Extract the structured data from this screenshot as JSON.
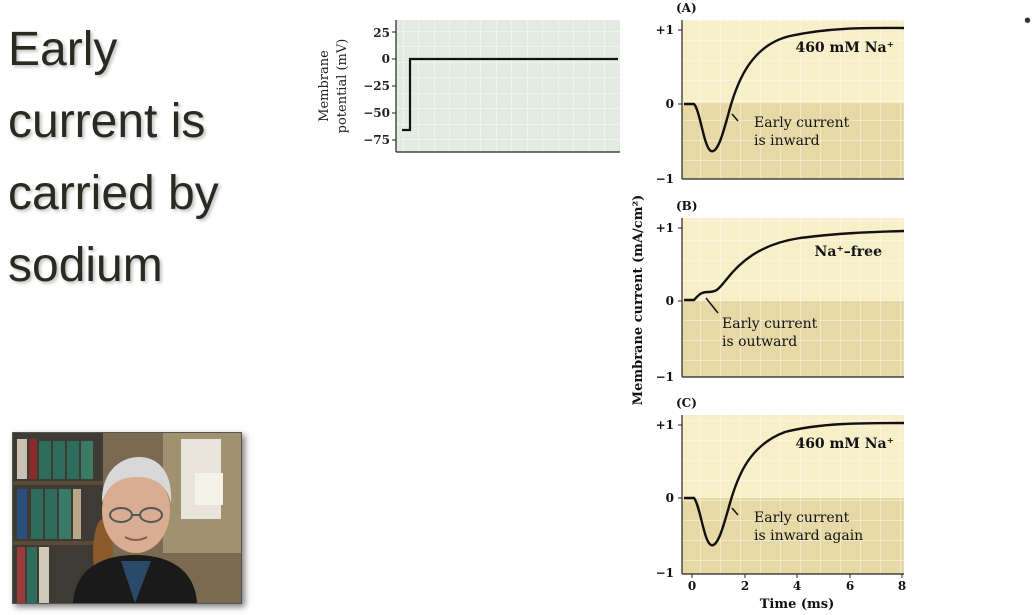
{
  "slide": {
    "title_lines": [
      "Early",
      "current is",
      "carried by",
      "sodium"
    ],
    "bullet": "•"
  },
  "voltage_plot": {
    "ylabel_line1": "Membrane",
    "ylabel_line2": "potential (mV)",
    "yticks": [
      "25",
      "0",
      "−25",
      "−50",
      "−75"
    ]
  },
  "chart_data": {
    "type": "line",
    "xlabel": "Time (ms)",
    "ylabel": "Membrane current (mA/cm²)",
    "xticks": [
      "0",
      "2",
      "4",
      "6",
      "8"
    ],
    "yticks": [
      "+1",
      "0",
      "−1"
    ],
    "panels": [
      {
        "label": "(A)",
        "condition": "460 mM Na⁺",
        "annotation_line1": "Early current",
        "annotation_line2": "is inward"
      },
      {
        "label": "(B)",
        "condition": "Na⁺–free",
        "annotation_line1": "Early current",
        "annotation_line2": "is outward"
      },
      {
        "label": "(C)",
        "condition": "460 mM Na⁺",
        "annotation_line1": "Early current",
        "annotation_line2": "is inward again"
      }
    ]
  },
  "colors": {
    "plot_bg_light": "#f6efc8",
    "plot_bg_dark": "#e6d9a6",
    "voltage_bg": "#e4ebe3",
    "grid": "#ffffff"
  }
}
